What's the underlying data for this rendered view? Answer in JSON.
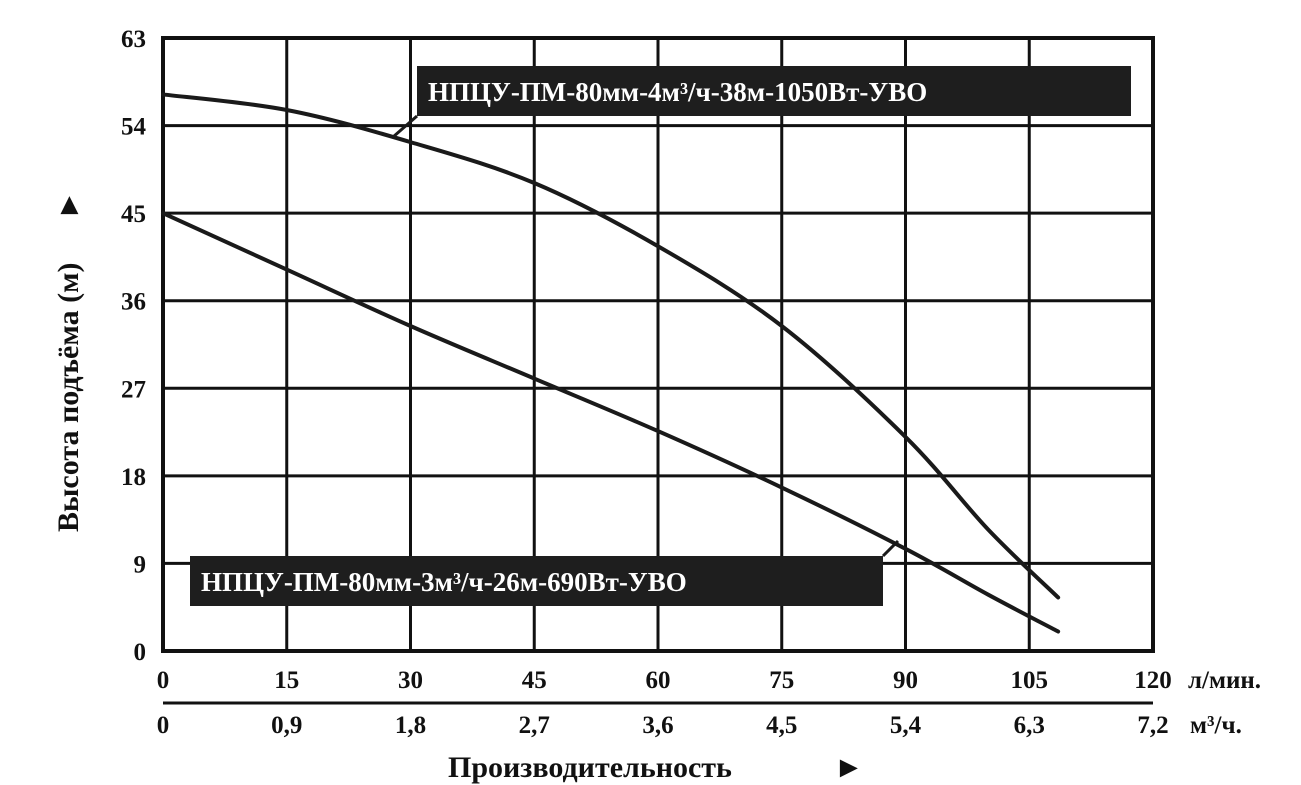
{
  "chart_data": {
    "type": "line",
    "ylabel": "Высота подъёма (м)",
    "ylabel_arrow": "►",
    "xlabel": "Производительность",
    "xlabel_arrow": "►",
    "ylim": [
      0,
      63
    ],
    "y_ticks": [
      "0",
      "9",
      "18",
      "27",
      "36",
      "45",
      "54",
      "63"
    ],
    "xlim": [
      0,
      120
    ],
    "x_ticks_primary": [
      "0",
      "15",
      "30",
      "45",
      "60",
      "75",
      "90",
      "105",
      "120"
    ],
    "x_unit_primary": "л/мин.",
    "x_ticks_secondary": [
      "0",
      "0,9",
      "1,8",
      "2,7",
      "3,6",
      "4,5",
      "5,4",
      "6,3",
      "7,2"
    ],
    "x_unit_secondary": "м³/ч.",
    "grid": true,
    "series": [
      {
        "name": "НПЦУ-ПМ-80мм-4м³/ч-38м-1050Вт-УВО",
        "color": "#1a1a1a",
        "points": [
          [
            0,
            57.2
          ],
          [
            15,
            55.6
          ],
          [
            30,
            52.3
          ],
          [
            45,
            48.1
          ],
          [
            60,
            41.6
          ],
          [
            75,
            33.4
          ],
          [
            90,
            22.0
          ],
          [
            100,
            12.5
          ],
          [
            108.5,
            5.5
          ]
        ]
      },
      {
        "name": "НПЦУ-ПМ-80мм-3м³/ч-26м-690Вт-УВО",
        "color": "#1a1a1a",
        "points": [
          [
            0,
            45.0
          ],
          [
            15,
            39.2
          ],
          [
            30,
            33.4
          ],
          [
            45,
            28.0
          ],
          [
            60,
            22.6
          ],
          [
            75,
            16.8
          ],
          [
            90,
            10.5
          ],
          [
            100,
            5.8
          ],
          [
            108.5,
            2.0
          ]
        ]
      }
    ]
  }
}
